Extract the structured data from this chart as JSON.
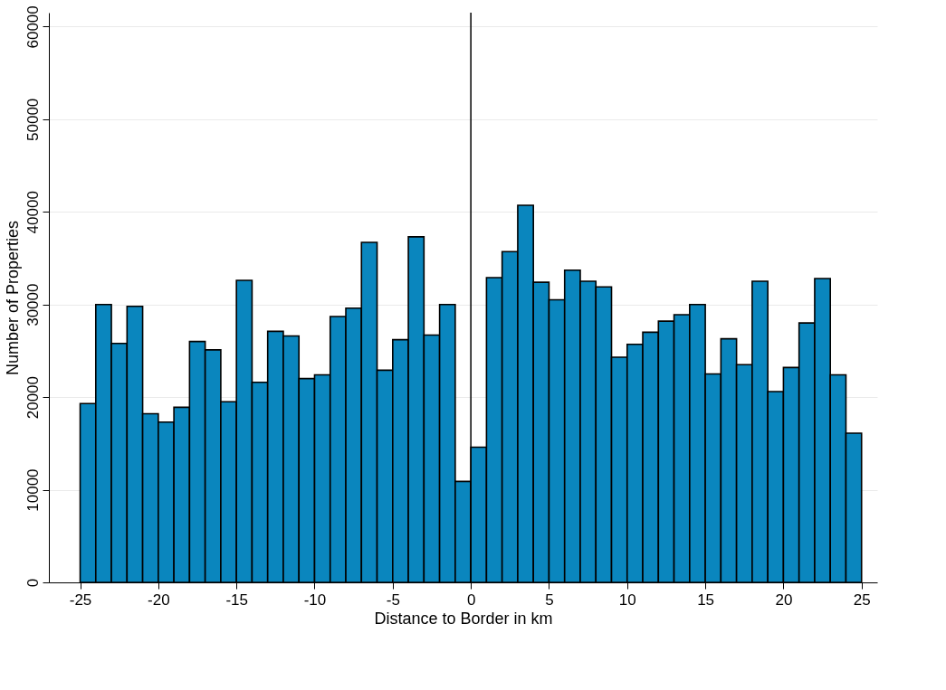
{
  "chart_data": {
    "type": "histogram",
    "xlabel": "Distance to Border in km",
    "ylabel": "Number of Properties",
    "bins": [
      -25,
      -24,
      -23,
      -22,
      -21,
      -20,
      -19,
      -18,
      -17,
      -16,
      -15,
      -14,
      -13,
      -12,
      -11,
      -10,
      -9,
      -8,
      -7,
      -6,
      -5,
      -4,
      -3,
      -2,
      -1,
      0,
      1,
      2,
      3,
      4,
      5,
      6,
      7,
      8,
      9,
      10,
      11,
      12,
      13,
      14,
      15,
      16,
      17,
      18,
      19,
      20,
      21,
      22,
      23,
      24,
      25
    ],
    "values": [
      19300,
      30000,
      25800,
      29800,
      18200,
      17300,
      18900,
      26000,
      25100,
      19500,
      32600,
      21600,
      27100,
      26600,
      22000,
      22400,
      28700,
      29600,
      36700,
      22900,
      26200,
      37300,
      26700,
      30000,
      10900,
      14600,
      32900,
      35700,
      40700,
      32400,
      30500,
      33700,
      32500,
      31900,
      24300,
      25700,
      27000,
      28200,
      28900,
      30000,
      22500,
      26300,
      23500,
      32500,
      20600,
      23200,
      28000,
      32800,
      22400,
      16100
    ],
    "color": "#0a86be",
    "xlim": [
      -27,
      26
    ],
    "xticks": [
      -25,
      -20,
      -15,
      -10,
      -5,
      0,
      5,
      10,
      15,
      20,
      25
    ],
    "ylim": [
      0,
      61500
    ],
    "yticks": [
      0,
      10000,
      20000,
      30000,
      40000,
      50000,
      60000
    ],
    "grid": "y",
    "ref_lines": [
      {
        "axis": "x",
        "value": 0,
        "color": "#000000"
      }
    ]
  }
}
